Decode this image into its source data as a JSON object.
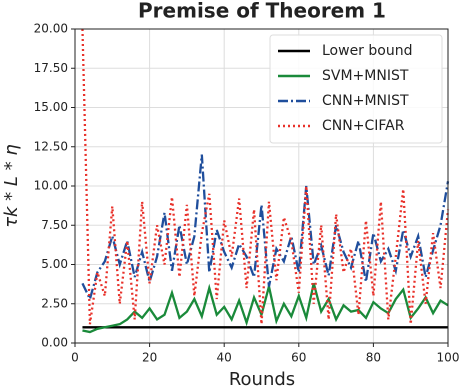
{
  "chart_data": {
    "type": "line",
    "title": "Premise of Theorem 1",
    "xlabel": "Rounds",
    "ylabel": "τk * L * η",
    "x": [
      2,
      4,
      6,
      8,
      10,
      12,
      14,
      16,
      18,
      20,
      22,
      24,
      26,
      28,
      30,
      32,
      34,
      36,
      38,
      40,
      42,
      44,
      46,
      48,
      50,
      52,
      54,
      56,
      58,
      60,
      62,
      64,
      66,
      68,
      70,
      72,
      74,
      76,
      78,
      80,
      82,
      84,
      86,
      88,
      90,
      92,
      94,
      96,
      98,
      100
    ],
    "series": [
      {
        "name": "Lower bound",
        "color": "#000000",
        "dash": "solid",
        "values": [
          1,
          1,
          1,
          1,
          1,
          1,
          1,
          1,
          1,
          1,
          1,
          1,
          1,
          1,
          1,
          1,
          1,
          1,
          1,
          1,
          1,
          1,
          1,
          1,
          1,
          1,
          1,
          1,
          1,
          1,
          1,
          1,
          1,
          1,
          1,
          1,
          1,
          1,
          1,
          1,
          1,
          1,
          1,
          1,
          1,
          1,
          1,
          1,
          1,
          1
        ]
      },
      {
        "name": "SVM+MNIST",
        "color": "#1a8a3a",
        "dash": "solid",
        "values": [
          0.8,
          0.7,
          0.9,
          1.0,
          1.1,
          1.2,
          1.5,
          2.0,
          1.6,
          2.2,
          1.5,
          1.8,
          3.2,
          1.6,
          2.0,
          2.8,
          1.7,
          3.5,
          1.8,
          2.3,
          1.5,
          2.7,
          1.3,
          2.9,
          1.8,
          3.6,
          1.4,
          2.5,
          1.7,
          3.0,
          1.6,
          3.8,
          2.0,
          2.8,
          1.5,
          2.4,
          2.0,
          2.1,
          1.6,
          2.6,
          2.2,
          1.9,
          2.8,
          3.4,
          1.6,
          2.2,
          2.9,
          1.9,
          2.7,
          2.4
        ]
      },
      {
        "name": "CNN+MNIST",
        "color": "#1f4e9c",
        "dash": "dashdot",
        "values": [
          3.8,
          2.8,
          4.5,
          5.2,
          6.8,
          5.0,
          6.5,
          4.2,
          5.8,
          3.9,
          5.5,
          8.3,
          4.6,
          7.5,
          5.0,
          6.8,
          12.0,
          4.5,
          7.2,
          5.8,
          4.8,
          6.3,
          5.5,
          4.2,
          8.8,
          3.6,
          6.0,
          5.2,
          6.8,
          4.5,
          10.0,
          5.0,
          6.2,
          4.3,
          7.5,
          5.8,
          4.8,
          6.5,
          3.9,
          7.0,
          5.2,
          6.0,
          4.6,
          7.2,
          5.5,
          6.8,
          4.2,
          5.9,
          7.5,
          10.3
        ]
      },
      {
        "name": "CNN+CIFAR",
        "color": "#e8312a",
        "dash": "dotted",
        "values": [
          20.0,
          1.2,
          4.5,
          3.0,
          8.7,
          2.5,
          6.5,
          1.5,
          9.0,
          3.8,
          7.5,
          5.0,
          9.3,
          4.2,
          8.8,
          3.0,
          7.0,
          9.5,
          2.8,
          7.8,
          5.5,
          9.2,
          3.5,
          8.5,
          1.2,
          9.0,
          4.0,
          8.0,
          6.5,
          3.2,
          10.0,
          2.5,
          7.5,
          1.5,
          8.2,
          4.5,
          6.0,
          1.8,
          7.8,
          3.0,
          9.0,
          1.5,
          5.5,
          9.8,
          1.2,
          6.5,
          2.5,
          7.0,
          3.5,
          8.5
        ]
      }
    ],
    "xlim": [
      0,
      100
    ],
    "xticks": [
      0,
      20,
      40,
      60,
      80,
      100
    ],
    "ylim": [
      0,
      20
    ],
    "yticks": [
      {
        "value": 0,
        "label": "0.00"
      },
      {
        "value": 2.5,
        "label": "2.50"
      },
      {
        "value": 5,
        "label": "5.00"
      },
      {
        "value": 7.5,
        "label": "7.50"
      },
      {
        "value": 10,
        "label": "10.00"
      },
      {
        "value": 12.5,
        "label": "12.50"
      },
      {
        "value": 15,
        "label": "15.00"
      },
      {
        "value": 17.5,
        "label": "17.50"
      },
      {
        "value": 20,
        "label": "20.00"
      }
    ],
    "grid": true,
    "legend": "upper right"
  }
}
